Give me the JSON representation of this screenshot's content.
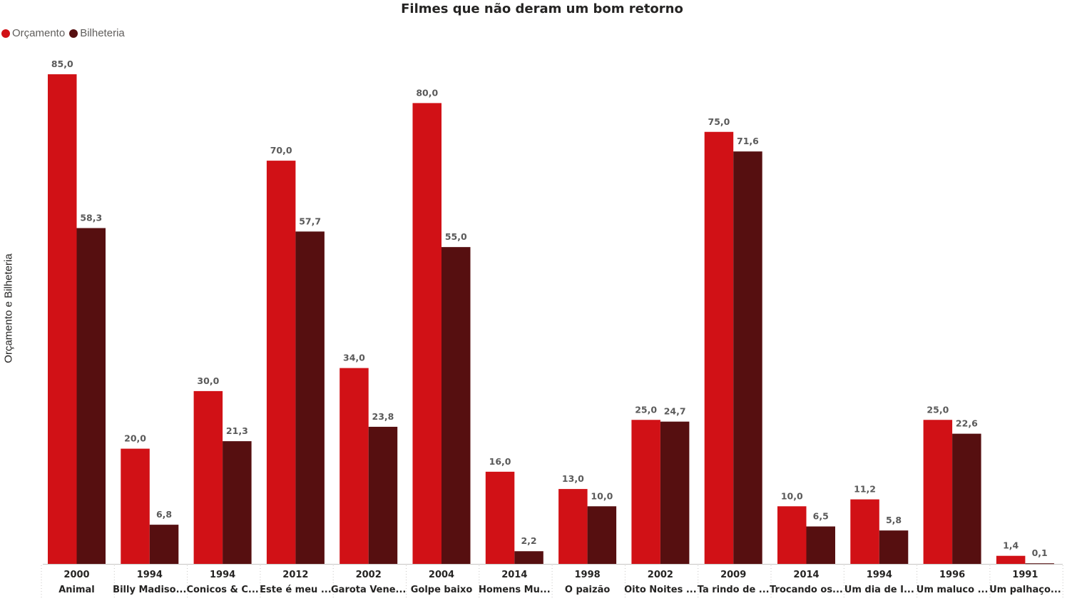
{
  "chart_data": {
    "type": "bar",
    "title": "Filmes que não deram um bom retorno",
    "ylabel": "Orçamento e Bilheteria",
    "xlabel": "",
    "legend_position": "top-left",
    "grid": false,
    "ylim": [
      0,
      85
    ],
    "categories": [
      {
        "year": "2000",
        "name": "Animal"
      },
      {
        "year": "1994",
        "name": "Billy Madiso..."
      },
      {
        "year": "1994",
        "name": "Conicos & C..."
      },
      {
        "year": "2012",
        "name": "Este é meu ..."
      },
      {
        "year": "2002",
        "name": "Garota Vene..."
      },
      {
        "year": "2004",
        "name": "Golpe baixo"
      },
      {
        "year": "2014",
        "name": "Homens Mu..."
      },
      {
        "year": "1998",
        "name": "O paizão"
      },
      {
        "year": "2002",
        "name": "Oito Noites ..."
      },
      {
        "year": "2009",
        "name": "Ta rindo de ..."
      },
      {
        "year": "2014",
        "name": "Trocando os..."
      },
      {
        "year": "1994",
        "name": "Um dia de I..."
      },
      {
        "year": "1996",
        "name": "Um maluco ..."
      },
      {
        "year": "1991",
        "name": "Um palhaço..."
      }
    ],
    "series": [
      {
        "name": "Orçamento",
        "color": "#d11116",
        "values": [
          85.0,
          20.0,
          30.0,
          70.0,
          34.0,
          80.0,
          16.0,
          13.0,
          25.0,
          75.0,
          10.0,
          11.2,
          25.0,
          1.4
        ],
        "labels": [
          "85,0",
          "20,0",
          "30,0",
          "70,0",
          "34,0",
          "80,0",
          "16,0",
          "13,0",
          "25,0",
          "75,0",
          "10,0",
          "11,2",
          "25,0",
          "1,4"
        ]
      },
      {
        "name": "Bilheteria",
        "color": "#560f10",
        "values": [
          58.3,
          6.8,
          21.3,
          57.7,
          23.8,
          55.0,
          2.2,
          10.0,
          24.7,
          71.6,
          6.5,
          5.8,
          22.6,
          0.1
        ],
        "labels": [
          "58,3",
          "6,8",
          "21,3",
          "57,7",
          "23,8",
          "55,0",
          "2,2",
          "10,0",
          "24,7",
          "71,6",
          "6,5",
          "5,8",
          "22,6",
          "0,1"
        ]
      }
    ]
  }
}
